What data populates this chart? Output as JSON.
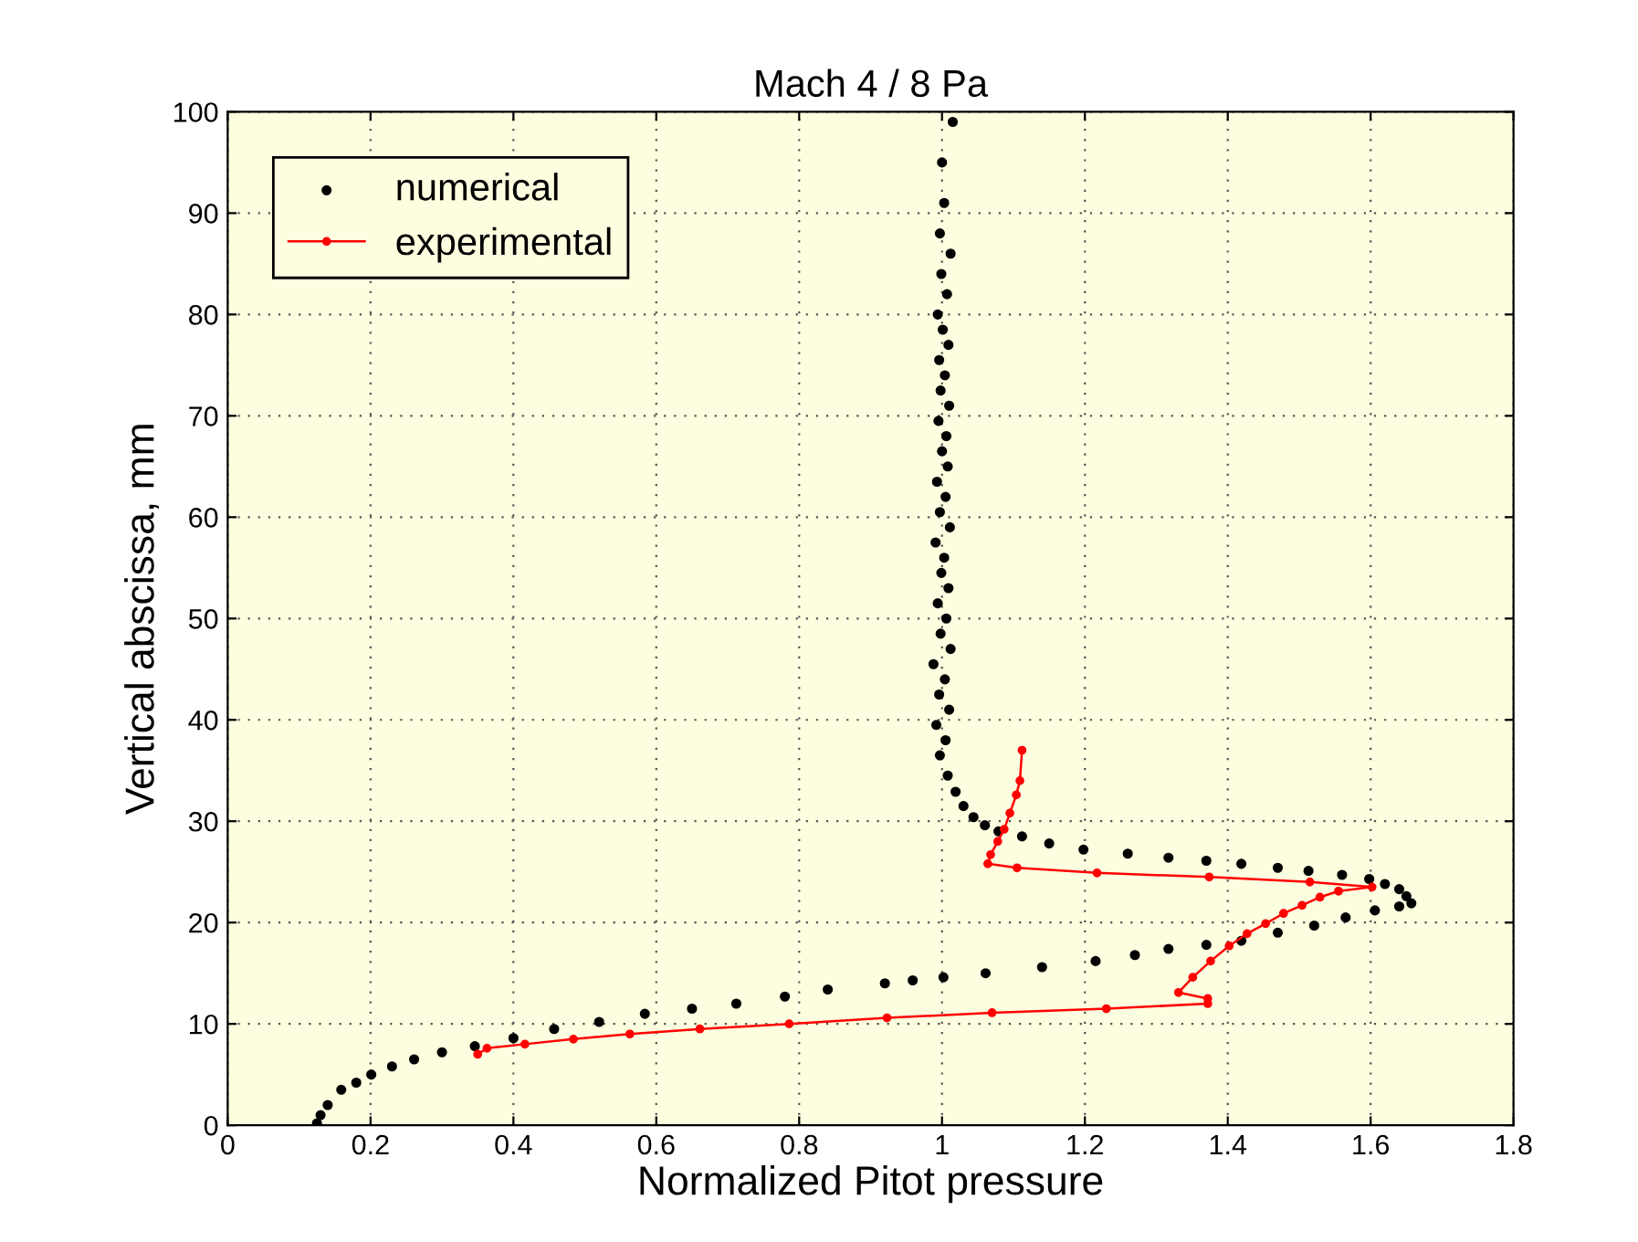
{
  "chart_data": {
    "type": "scatter",
    "title": "Mach 4 / 8 Pa",
    "xlabel": "Normalized Pitot pressure",
    "ylabel": "Vertical abscissa, mm",
    "xlim": [
      0,
      1.8
    ],
    "xticks": [
      0,
      0.2,
      0.4,
      0.6,
      0.8,
      1,
      1.2,
      1.4,
      1.6,
      1.8
    ],
    "ylim": [
      0,
      100
    ],
    "yticks": [
      0,
      10,
      20,
      30,
      40,
      50,
      60,
      70,
      80,
      90,
      100
    ],
    "grid": true,
    "legend": "top left",
    "line_style": "solid",
    "series": [
      {
        "name": "numerical",
        "marker": "circle",
        "color": "#000000",
        "x": [
          0.125,
          0.13,
          0.14,
          0.159,
          0.18,
          0.201,
          0.23,
          0.261,
          0.3,
          0.346,
          0.4,
          0.457,
          0.52,
          0.584,
          0.65,
          0.712,
          0.78,
          0.84,
          0.92,
          0.959,
          1.002,
          1.061,
          1.14,
          1.215,
          1.27,
          1.317,
          1.37,
          1.419,
          1.47,
          1.521,
          1.565,
          1.606,
          1.64,
          1.657,
          1.65,
          1.64,
          1.62,
          1.598,
          1.56,
          1.513,
          1.47,
          1.419,
          1.37,
          1.317,
          1.26,
          1.198,
          1.15,
          1.112,
          1.079,
          1.06,
          1.044,
          1.03,
          1.019,
          1.008,
          0.997,
          1.005,
          0.992,
          1.01,
          0.996,
          1.004,
          0.988,
          1.012,
          0.998,
          1.006,
          0.994,
          1.009,
          0.999,
          1.003,
          0.991,
          1.011,
          0.997,
          1.005,
          0.993,
          1.008,
          1.0,
          1.006,
          0.995,
          1.01,
          0.998,
          1.004,
          0.996,
          1.009,
          1.001,
          0.994,
          1.007,
          0.999,
          1.012,
          0.997,
          1.003,
          1.0,
          1.015
        ],
        "values": [
          0.2,
          1.0,
          2.0,
          3.5,
          4.2,
          5.0,
          5.8,
          6.5,
          7.2,
          7.8,
          8.6,
          9.5,
          10.2,
          11.0,
          11.5,
          12.0,
          12.7,
          13.4,
          14.0,
          14.3,
          14.6,
          15.0,
          15.6,
          16.2,
          16.8,
          17.4,
          17.8,
          18.2,
          19.0,
          19.7,
          20.5,
          21.2,
          21.6,
          21.9,
          22.6,
          23.3,
          23.8,
          24.3,
          24.7,
          25.1,
          25.4,
          25.8,
          26.1,
          26.4,
          26.8,
          27.2,
          27.8,
          28.5,
          29.0,
          29.6,
          30.4,
          31.5,
          32.9,
          34.5,
          36.5,
          38.0,
          39.5,
          41.0,
          42.5,
          44.0,
          45.5,
          47.0,
          48.5,
          50.0,
          51.5,
          53.0,
          54.5,
          56.0,
          57.5,
          59.0,
          60.5,
          62.0,
          63.5,
          65.0,
          66.5,
          68.0,
          69.5,
          71.0,
          72.5,
          74.0,
          75.5,
          77.0,
          78.5,
          80.0,
          82.0,
          84.0,
          86.0,
          88.0,
          91.0,
          95.0,
          99.0
        ]
      },
      {
        "name": "experimental",
        "type": "line",
        "marker": "circle",
        "color": "#ff0000",
        "x": [
          0.35,
          0.363,
          0.416,
          0.484,
          0.563,
          0.661,
          0.786,
          0.923,
          1.07,
          1.23,
          1.372,
          1.372,
          1.331,
          1.351,
          1.376,
          1.402,
          1.427,
          1.453,
          1.478,
          1.504,
          1.529,
          1.555,
          1.602,
          1.515,
          1.374,
          1.217,
          1.105,
          1.064,
          1.068,
          1.078,
          1.087,
          1.095,
          1.104,
          1.109,
          1.112
        ],
        "values": [
          7.0,
          7.6,
          8.0,
          8.5,
          9.0,
          9.5,
          10.0,
          10.6,
          11.1,
          11.5,
          12.0,
          12.5,
          13.1,
          14.6,
          16.2,
          17.7,
          18.9,
          19.9,
          20.9,
          21.7,
          22.5,
          23.1,
          23.5,
          24.0,
          24.5,
          24.9,
          25.4,
          25.8,
          26.7,
          28.0,
          29.2,
          30.8,
          32.6,
          34.0,
          37.0
        ]
      }
    ]
  }
}
